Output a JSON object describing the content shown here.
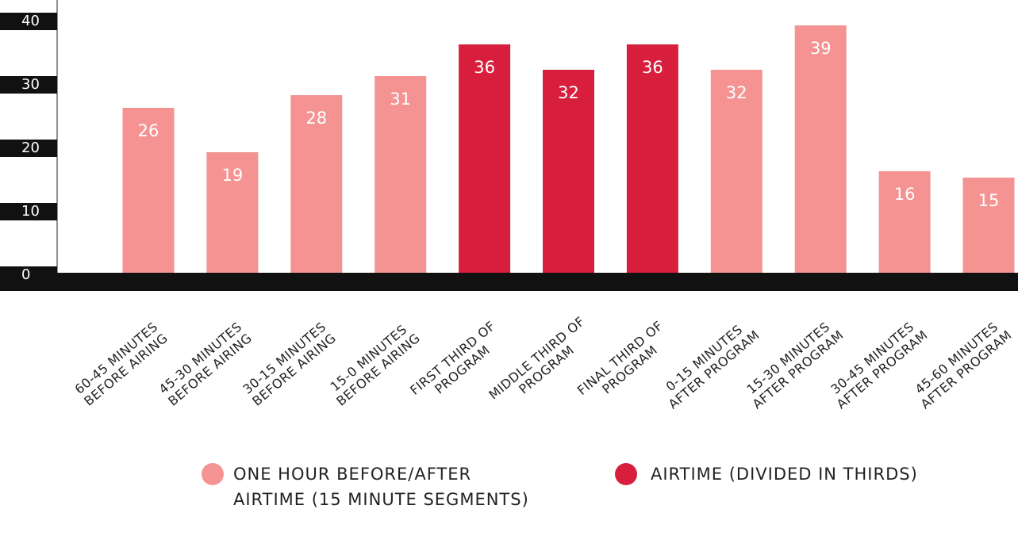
{
  "chart_data": {
    "type": "bar",
    "categories": [
      "60-45 MINUTES\nBEFORE AIRING",
      "45-30 MINUTES\nBEFORE AIRING",
      "30-15 MINUTES\nBEFORE AIRING",
      "15-0 MINUTES\nBEFORE AIRING",
      "FIRST THIRD OF\nPROGRAM",
      "MIDDLE THIRD OF\nPROGRAM",
      "FINAL THIRD OF\nPROGRAM",
      "0-15 MINUTES\nAFTER PROGRAM",
      "15-30 MINUTES\nAFTER PROGRAM",
      "30-45 MINUTES\nAFTER PROGRAM",
      "45-60 MINUTES\nAFTER PROGRAM"
    ],
    "series": [
      {
        "name": "ONE HOUR BEFORE/AFTER AIRTIME (15 MINUTE SEGMENTS)",
        "color": "#f49392",
        "values": [
          26,
          19,
          28,
          31,
          null,
          null,
          null,
          32,
          39,
          16,
          15
        ]
      },
      {
        "name": "AIRTIME (DIVIDED IN THIRDS)",
        "color": "#d71f3d",
        "values": [
          null,
          null,
          null,
          null,
          36,
          32,
          36,
          null,
          null,
          null,
          null
        ]
      }
    ],
    "ylim": [
      0,
      40
    ],
    "yticks": [
      0,
      10,
      20,
      30,
      40
    ]
  }
}
